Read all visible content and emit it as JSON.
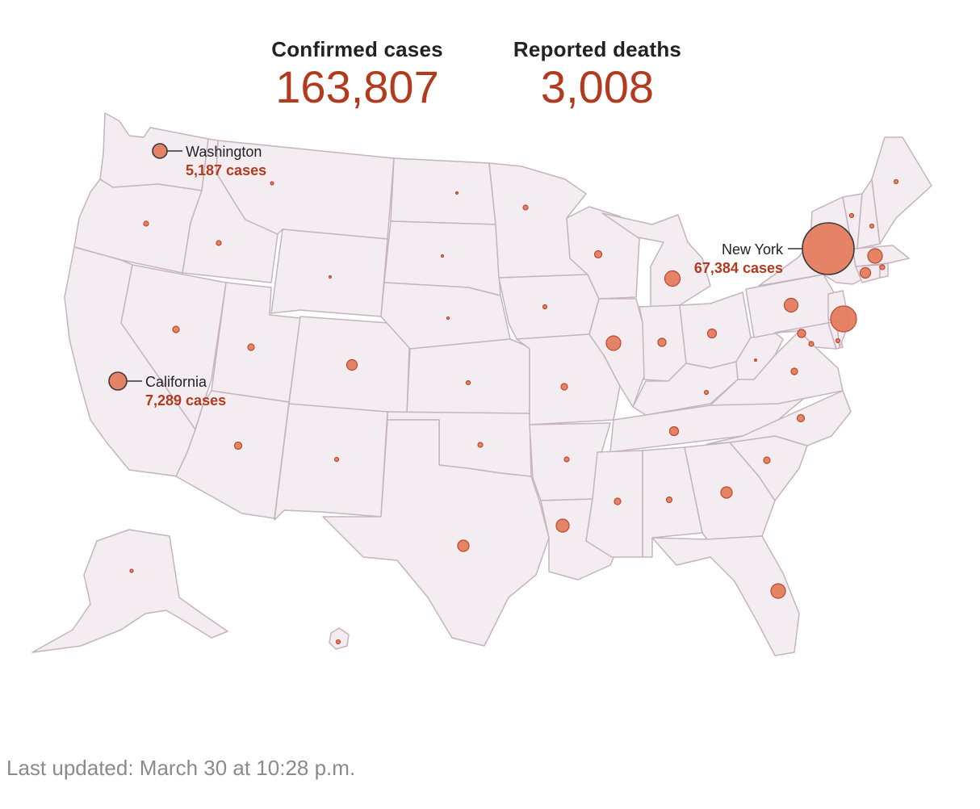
{
  "header": {
    "confirmed_label": "Confirmed cases",
    "confirmed_value": "163,807",
    "deaths_label": "Reported deaths",
    "deaths_value": "3,008"
  },
  "callouts": {
    "washington": {
      "name": "Washington",
      "cases": "5,187 cases"
    },
    "california": {
      "name": "California",
      "cases": "7,289 cases"
    },
    "new_york": {
      "name": "New York",
      "cases": "67,384 cases"
    }
  },
  "footer": {
    "updated": "Last updated: March 30 at 10:28 p.m."
  },
  "colors": {
    "land": "#f3edf2",
    "border": "#c6b3bf",
    "bubble_fill": "#e5795a",
    "bubble_stroke": "#b8492c",
    "accent_text": "#b33a1c"
  }
}
